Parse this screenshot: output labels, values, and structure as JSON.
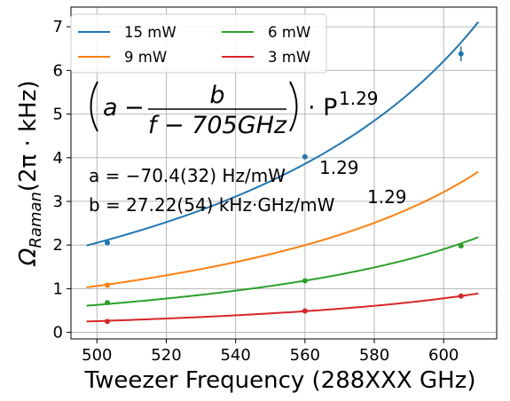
{
  "chart_data": {
    "type": "line",
    "xlabel": "Tweezer Frequency (288XXX GHz)",
    "ylabel_parts": {
      "main": "Ω",
      "sub": "Raman",
      "unit": "(2π · kHz)"
    },
    "xlim": [
      492.5,
      615.3
    ],
    "ylim": [
      -0.15,
      7.45
    ],
    "xticks": [
      500,
      520,
      540,
      560,
      580,
      600
    ],
    "yticks": [
      0,
      1,
      2,
      3,
      4,
      5,
      6,
      7
    ],
    "grid": true,
    "legend": {
      "location": "top-left",
      "columns": 2
    },
    "fit_x_range": [
      497,
      610
    ],
    "fit_model": {
      "a": -70.4,
      "b": 27.22,
      "f0": 705,
      "exponent": 1.29
    },
    "series": [
      {
        "name": "15 mW",
        "color": "#1f77b4",
        "power": 15,
        "points": [
          {
            "x": 503,
            "y": 2.05
          },
          {
            "x": 560,
            "y": 4.02
          },
          {
            "x": 605,
            "y": 6.38,
            "err": 0.17
          }
        ]
      },
      {
        "name": "9 mW",
        "color": "#ff7f0e",
        "power": 9,
        "points": [
          {
            "x": 503,
            "y": 1.08
          }
        ]
      },
      {
        "name": "6 mW",
        "color": "#2ca02c",
        "power": 6,
        "points": [
          {
            "x": 503,
            "y": 0.68
          },
          {
            "x": 560,
            "y": 1.18
          },
          {
            "x": 605,
            "y": 1.98
          }
        ]
      },
      {
        "name": "3 mW",
        "color": "#d62728",
        "power": 3,
        "points": [
          {
            "x": 503,
            "y": 0.25
          },
          {
            "x": 560,
            "y": 0.49
          },
          {
            "x": 605,
            "y": 0.83
          }
        ]
      }
    ],
    "annotations": {
      "formula_a": "a",
      "formula_minus": "−",
      "formula_num": "b",
      "formula_den": "f − 705GHz",
      "formula_dot": "· P",
      "formula_exp": "1.29",
      "param_a": "a = −70.4(32) Hz/mW",
      "param_a_exp": "1.29",
      "param_b": "b = 27.22(54) kHz·GHz/mW",
      "param_b_exp": "1.29"
    }
  }
}
